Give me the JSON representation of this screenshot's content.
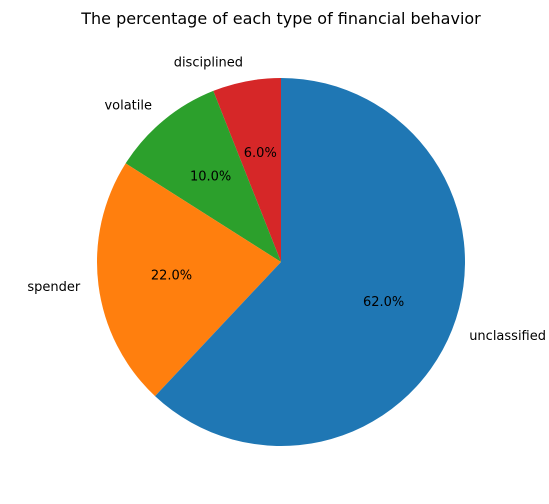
{
  "chart_data": {
    "type": "pie",
    "title": "The percentage of each type of financial behavior",
    "categories": [
      "disciplined",
      "volatile",
      "spender",
      "unclassified"
    ],
    "values": [
      6.0,
      10.0,
      22.0,
      62.0
    ],
    "percent_labels": [
      "6.0%",
      "10.0%",
      "22.0%",
      "62.0%"
    ],
    "colors": [
      "#d62728",
      "#2ca02c",
      "#ff7f0e",
      "#1f77b4"
    ],
    "start_angle_deg": 90,
    "direction": "counterclockwise",
    "legend": "none"
  }
}
